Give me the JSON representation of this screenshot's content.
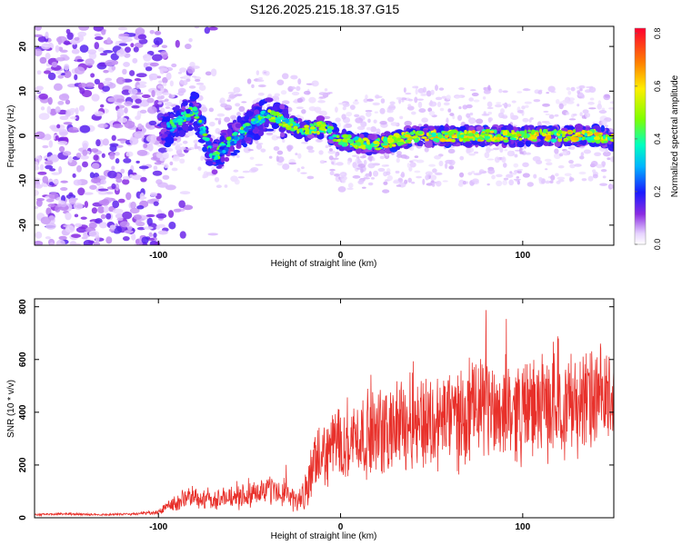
{
  "title": "S126.2025.215.18.37.G15",
  "chart_data": [
    {
      "type": "heatmap",
      "xlabel": "Height of straight line (km)",
      "ylabel": "Frequency (Hz)",
      "xlim": [
        -168,
        150
      ],
      "ylim": [
        -24.5,
        24.5
      ],
      "xticks": [
        -100,
        0,
        100
      ],
      "xtick_labels": [
        "-100",
        "0",
        "100"
      ],
      "yticks": [
        -20,
        -10,
        0,
        10,
        20
      ],
      "ytick_labels": [
        "-20",
        "-10",
        "0",
        "10",
        "20"
      ],
      "grid": false,
      "description_of_ridge": "Signal ridge near 0 Hz from about -100 km to 150 km; scattered noise below -100 km",
      "ridge_center_hz": [
        {
          "x": -100,
          "y": 0
        },
        {
          "x": -90,
          "y": 3
        },
        {
          "x": -80,
          "y": 6
        },
        {
          "x": -70,
          "y": -5
        },
        {
          "x": -60,
          "y": -1
        },
        {
          "x": -50,
          "y": 2
        },
        {
          "x": -40,
          "y": 5
        },
        {
          "x": -30,
          "y": 3
        },
        {
          "x": -20,
          "y": 1
        },
        {
          "x": -10,
          "y": 2
        },
        {
          "x": 0,
          "y": -1
        },
        {
          "x": 20,
          "y": -2
        },
        {
          "x": 40,
          "y": 0
        },
        {
          "x": 60,
          "y": 0
        },
        {
          "x": 80,
          "y": 0
        },
        {
          "x": 100,
          "y": 0
        },
        {
          "x": 120,
          "y": 0
        },
        {
          "x": 140,
          "y": 0
        },
        {
          "x": 150,
          "y": -1
        }
      ],
      "colorbar": {
        "label": "Normalized spectral amplitude",
        "range": [
          0,
          0.82
        ],
        "ticks": [
          0.0,
          0.2,
          0.4,
          0.6,
          0.8
        ],
        "tick_labels": [
          "0.0",
          "0.2",
          "0.4",
          "0.6",
          "0.8"
        ]
      }
    },
    {
      "type": "line",
      "xlabel": "Height of straight line (km)",
      "ylabel": "SNR (10 * v/v)",
      "xlim": [
        -168,
        150
      ],
      "ylim": [
        0,
        830
      ],
      "xticks": [
        -100,
        0,
        100
      ],
      "xtick_labels": [
        "-100",
        "0",
        "100"
      ],
      "yticks": [
        0,
        200,
        400,
        600,
        800
      ],
      "ytick_labels": [
        "0",
        "200",
        "400",
        "600",
        "800"
      ],
      "grid": false,
      "series": [
        {
          "color": "#e8302a",
          "x": [
            -168,
            -150,
            -130,
            -110,
            -100,
            -95,
            -90,
            -85,
            -80,
            -75,
            -70,
            -65,
            -60,
            -55,
            -50,
            -45,
            -40,
            -35,
            -30,
            -25,
            -20,
            -15,
            -10,
            -5,
            0,
            5,
            10,
            20,
            30,
            40,
            50,
            60,
            70,
            80,
            90,
            100,
            110,
            120,
            130,
            140,
            150
          ],
          "y": [
            12,
            14,
            12,
            15,
            20,
            45,
            60,
            70,
            75,
            75,
            70,
            72,
            75,
            80,
            90,
            100,
            105,
            100,
            95,
            60,
            80,
            190,
            230,
            270,
            300,
            300,
            310,
            320,
            340,
            380,
            360,
            380,
            390,
            420,
            410,
            410,
            420,
            430,
            440,
            440,
            450
          ],
          "noise_amplitude": [
            4,
            4,
            4,
            5,
            10,
            25,
            35,
            40,
            40,
            40,
            40,
            40,
            40,
            45,
            50,
            50,
            55,
            55,
            55,
            40,
            60,
            100,
            120,
            130,
            150,
            150,
            150,
            160,
            170,
            190,
            180,
            190,
            190,
            190,
            190,
            190,
            190,
            190,
            200,
            200,
            180
          ]
        }
      ]
    }
  ]
}
